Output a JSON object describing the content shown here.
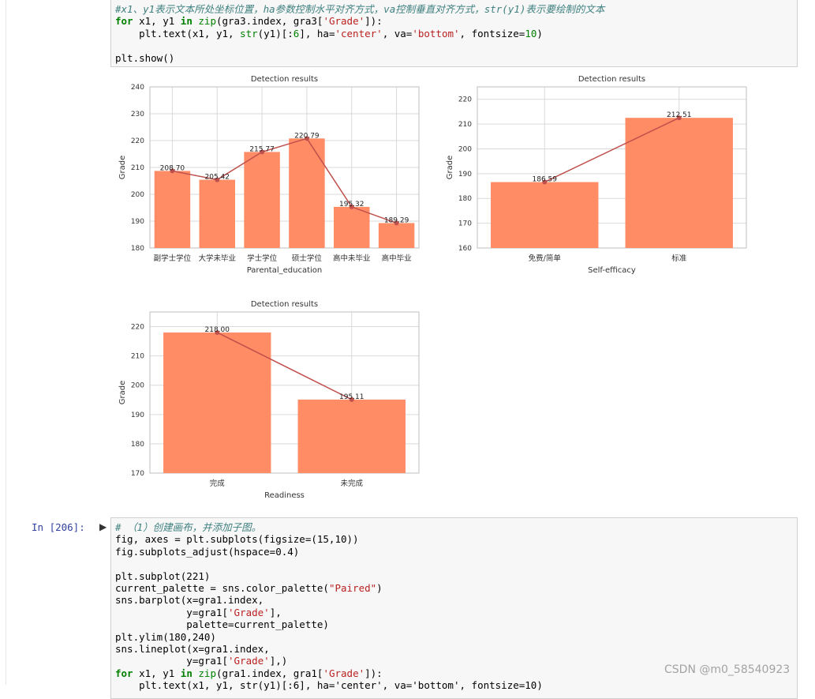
{
  "top_cell": {
    "comment": "#x1、y1表示文本所处坐标位置，ha参数控制水平对齐方式，va控制垂直对齐方式，str(y1)表示要绘制的文本",
    "loop_var": "x1, y1",
    "loop_iter_a": "gra3.index, gra3[",
    "loop_str": "'Grade'",
    "loop_iter_b": "]):",
    "text_call_a": "plt.text(x1, y1, ",
    "text_call_b": "(y1)[:",
    "text_num": "6",
    "text_call_c": "], ha=",
    "text_ha": "'center'",
    "text_call_d": ", va=",
    "text_va": "'bottom'",
    "text_call_e": ", fontsize=",
    "text_fs": "10",
    "text_call_f": ")",
    "show": "plt.show()"
  },
  "bottom_cell": {
    "prompt": "In  [206]:",
    "run_marker": "▶",
    "comment": "# （1）创建画布，并添加子图。",
    "line2": "fig, axes = plt.subplots(figsize=(15,10))",
    "line3": "fig.subplots_adjust(hspace=0.4)",
    "line5": "plt.subplot(221)",
    "line6a": "current_palette = sns.color_palette(",
    "line6s": "\"Paired\"",
    "line6b": ")",
    "line7": "sns.barplot(x=gra1.index,",
    "line8a": "            y=gra1[",
    "line8s": "'Grade'",
    "line8b": "],",
    "line9": "            palette=current_palette)",
    "line10": "plt.ylim(180,240)",
    "line11": "sns.lineplot(x=gra1.index,",
    "line12a": "            y=gra1[",
    "line12s": "'Grade'",
    "line12b": "],)",
    "line13_var": "x1, y1",
    "line13_iter": "gra1.index, gra1[",
    "line13s": "'Grade'",
    "line13b": "]):",
    "line14": "    plt.text(x1, y1, str(y1)[:6], ha='center', va='bottom', fontsize=10)"
  },
  "keywords": {
    "for": "for",
    "in": "in",
    "zip": "zip",
    "str": "str"
  },
  "watermark": "CSDN @m0_58540923",
  "colors": {
    "bar": "#ff8c64",
    "line": "#c0504d",
    "grid": "#d9d9d9"
  },
  "chart_data": [
    {
      "type": "bar",
      "title": "Detection results",
      "xlabel": "Parental_education",
      "ylabel": "Grade",
      "ylim": [
        180,
        240
      ],
      "yticks": [
        180,
        190,
        200,
        210,
        220,
        230,
        240
      ],
      "categories": [
        "副学士学位",
        "大学未毕业",
        "学士学位",
        "硕士学位",
        "高中未毕业",
        "高中毕业"
      ],
      "values": [
        208.7,
        205.42,
        215.77,
        220.79,
        195.32,
        189.29
      ],
      "labels": [
        "208.70",
        "205.42",
        "215.77",
        "220.79",
        "195.32",
        "189.29"
      ],
      "overlay": "line",
      "grid": true
    },
    {
      "type": "bar",
      "title": "Detection results",
      "xlabel": "Self-efficacy",
      "ylabel": "Grade",
      "ylim": [
        160,
        225
      ],
      "yticks": [
        160,
        170,
        180,
        190,
        200,
        210,
        220
      ],
      "categories": [
        "免费/简单",
        "标准"
      ],
      "values": [
        186.59,
        212.51
      ],
      "labels": [
        "186.59",
        "212.51"
      ],
      "overlay": "line",
      "grid": true
    },
    {
      "type": "bar",
      "title": "Detection results",
      "xlabel": "Readiness",
      "ylabel": "Grade",
      "ylim": [
        170,
        225
      ],
      "yticks": [
        170,
        180,
        190,
        200,
        210,
        220
      ],
      "categories": [
        "完成",
        "未完成"
      ],
      "values": [
        218.0,
        195.11
      ],
      "labels": [
        "218.00",
        "195.11"
      ],
      "overlay": "line",
      "grid": true
    }
  ]
}
